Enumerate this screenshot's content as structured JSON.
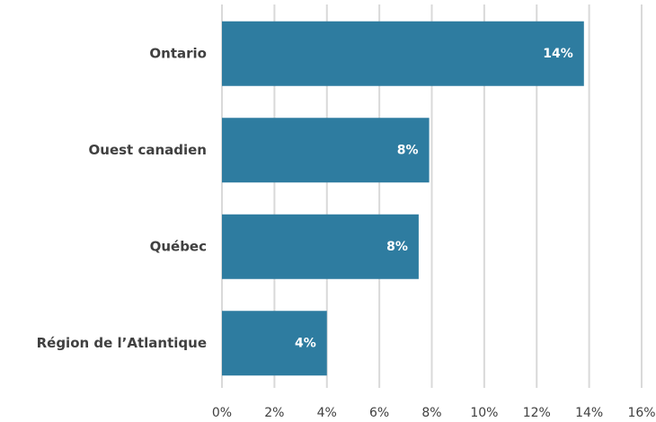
{
  "chart_data": {
    "type": "bar",
    "orientation": "horizontal",
    "categories": [
      "Ontario",
      "Ouest canadien",
      "Québec",
      "Région de l’Atlantique"
    ],
    "values": [
      13.8,
      7.9,
      7.5,
      4.0
    ],
    "value_labels": [
      "14%",
      "8%",
      "8%",
      "4%"
    ],
    "color": "#2e7ca0",
    "xlim": [
      0,
      16
    ],
    "xticks": [
      {
        "value": 0,
        "label": "0%"
      },
      {
        "value": 2,
        "label": "2%"
      },
      {
        "value": 4,
        "label": "4%"
      },
      {
        "value": 6,
        "label": "6%"
      },
      {
        "value": 8,
        "label": "8%"
      },
      {
        "value": 10,
        "label": "10%"
      },
      {
        "value": 12,
        "label": "12%"
      },
      {
        "value": 14,
        "label": "14%"
      },
      {
        "value": 16,
        "label": "16%"
      }
    ],
    "grid": true
  }
}
